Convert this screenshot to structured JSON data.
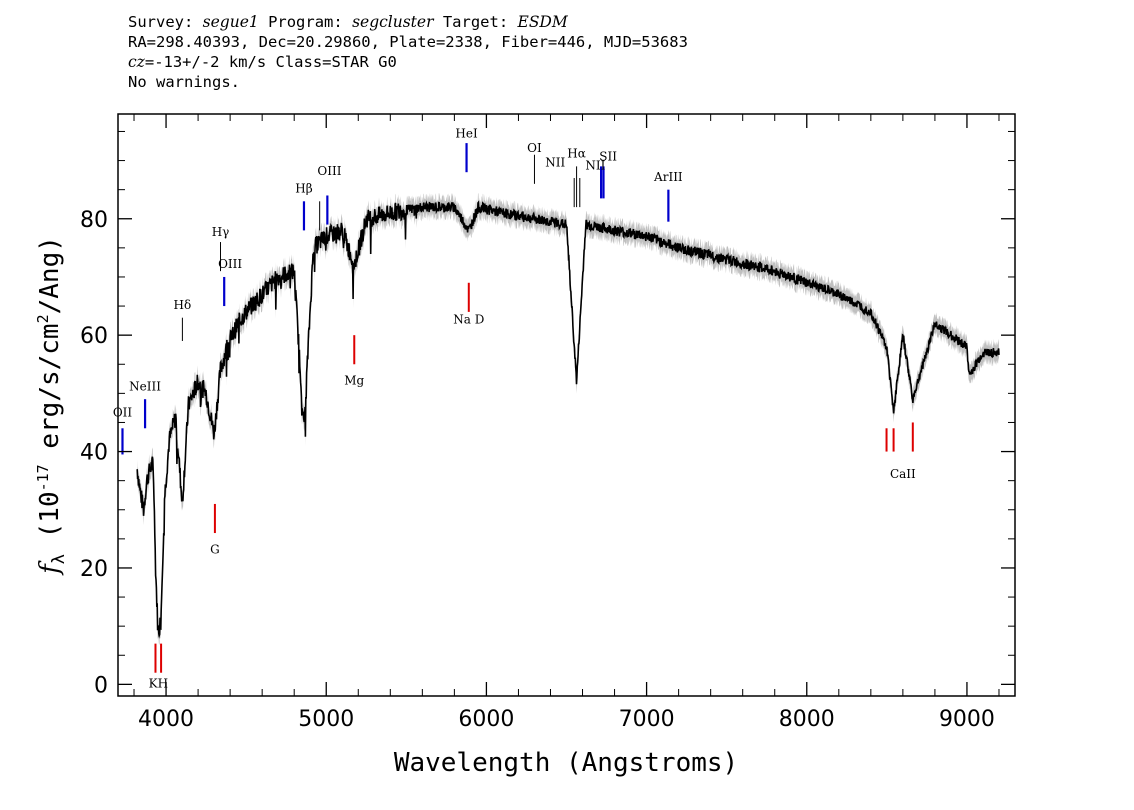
{
  "header": {
    "line1": {
      "survey_label": "Survey: ",
      "survey": "segue1",
      "program_label": " Program: ",
      "program": "segcluster",
      "target_label": " Target: ",
      "target": "ESDM"
    },
    "line2": "RA=298.40393, Dec=20.29860, Plate=2338, Fiber=446, MJD=53683",
    "line3": {
      "cz_label": "cz",
      "cz_value": "=-13+/-2 km/s Class=STAR G0"
    },
    "line4": "No warnings."
  },
  "chart_data": {
    "type": "line",
    "xlabel": "Wavelength (Angstroms)",
    "ylabel": "f_λ (10^-17 erg/s/cm^2/Ang)",
    "xlim": [
      3700,
      9300
    ],
    "ylim": [
      -2,
      98
    ],
    "xticks": [
      4000,
      5000,
      6000,
      7000,
      8000,
      9000
    ],
    "yticks": [
      0,
      20,
      40,
      60,
      80
    ],
    "grid": false,
    "colors": {
      "spectrum": "#000000",
      "error_band": "#b0b0b0",
      "emission": "#0000cc",
      "absorption": "#dd0000"
    },
    "series": [
      {
        "x": [
          3820,
          3840,
          3860,
          3880,
          3900,
          3920,
          3935,
          3950,
          3968,
          3990,
          4020,
          4060,
          4101,
          4140,
          4200,
          4250,
          4300,
          4340,
          4380,
          4450,
          4500,
          4600,
          4700,
          4800,
          4861,
          4920,
          5000,
          5100,
          5175,
          5250,
          5400,
          5600,
          5800,
          5890,
          5950,
          6100,
          6300,
          6500,
          6563,
          6620,
          6800,
          7000,
          7200,
          7500,
          7800,
          8000,
          8200,
          8400,
          8498,
          8542,
          8600,
          8662,
          8800,
          9000,
          9015,
          9100,
          9200
        ],
        "y": [
          37,
          33,
          30,
          35,
          37,
          38,
          20,
          9,
          11,
          32,
          42,
          46,
          31,
          48,
          52,
          50,
          43,
          54,
          58,
          62,
          64,
          67,
          70,
          71,
          44,
          75,
          77,
          78,
          72,
          80,
          81,
          82,
          82,
          78,
          82,
          81,
          80,
          79,
          52,
          79,
          78,
          77,
          75,
          73,
          71,
          69,
          67,
          64,
          58,
          47,
          60,
          49,
          62,
          58,
          53,
          57,
          57
        ]
      }
    ],
    "emission_lines": [
      {
        "label": "OII",
        "x": 3728
      },
      {
        "label": "NeIII",
        "x": 3869
      },
      {
        "label": "Hδ",
        "x": 4102
      },
      {
        "label": "Hγ",
        "x": 4340
      },
      {
        "label": "OIII",
        "x": 4363
      },
      {
        "label": "Hβ",
        "x": 4861
      },
      {
        "label": "OIII",
        "x": 4959
      },
      {
        "label": "OIII",
        "x": 5007
      },
      {
        "label": "HeI",
        "x": 5876
      },
      {
        "label": "OI",
        "x": 6300
      },
      {
        "label": "NII",
        "x": 6548
      },
      {
        "label": "Hα",
        "x": 6563
      },
      {
        "label": "NII",
        "x": 6583
      },
      {
        "label": "SII",
        "x": 6716
      },
      {
        "label": "SII",
        "x": 6731
      },
      {
        "label": "ArIII",
        "x": 7136
      }
    ],
    "absorption_lines": [
      {
        "label": "K",
        "x": 3934
      },
      {
        "label": "H",
        "x": 3969
      },
      {
        "label": "G",
        "x": 4305
      },
      {
        "label": "Mg",
        "x": 5175
      },
      {
        "label": "Na",
        "x": 5890
      },
      {
        "label": "D",
        "x": 5896
      },
      {
        "label": "CaII",
        "x": 8498
      },
      {
        "label": "CaII",
        "x": 8542
      },
      {
        "label": "CaII",
        "x": 8662
      }
    ],
    "emission_label_texts": [
      "OII",
      "NeIII",
      "Hδ",
      "Hγ",
      "OIII",
      "Hβ",
      "OIII",
      "HeI",
      "OI",
      "NII",
      "Hα",
      "NII",
      "SII",
      "ArIII"
    ],
    "absorption_label_texts": [
      "KH",
      "G",
      "Mg",
      "Na  D",
      "CaII"
    ]
  }
}
